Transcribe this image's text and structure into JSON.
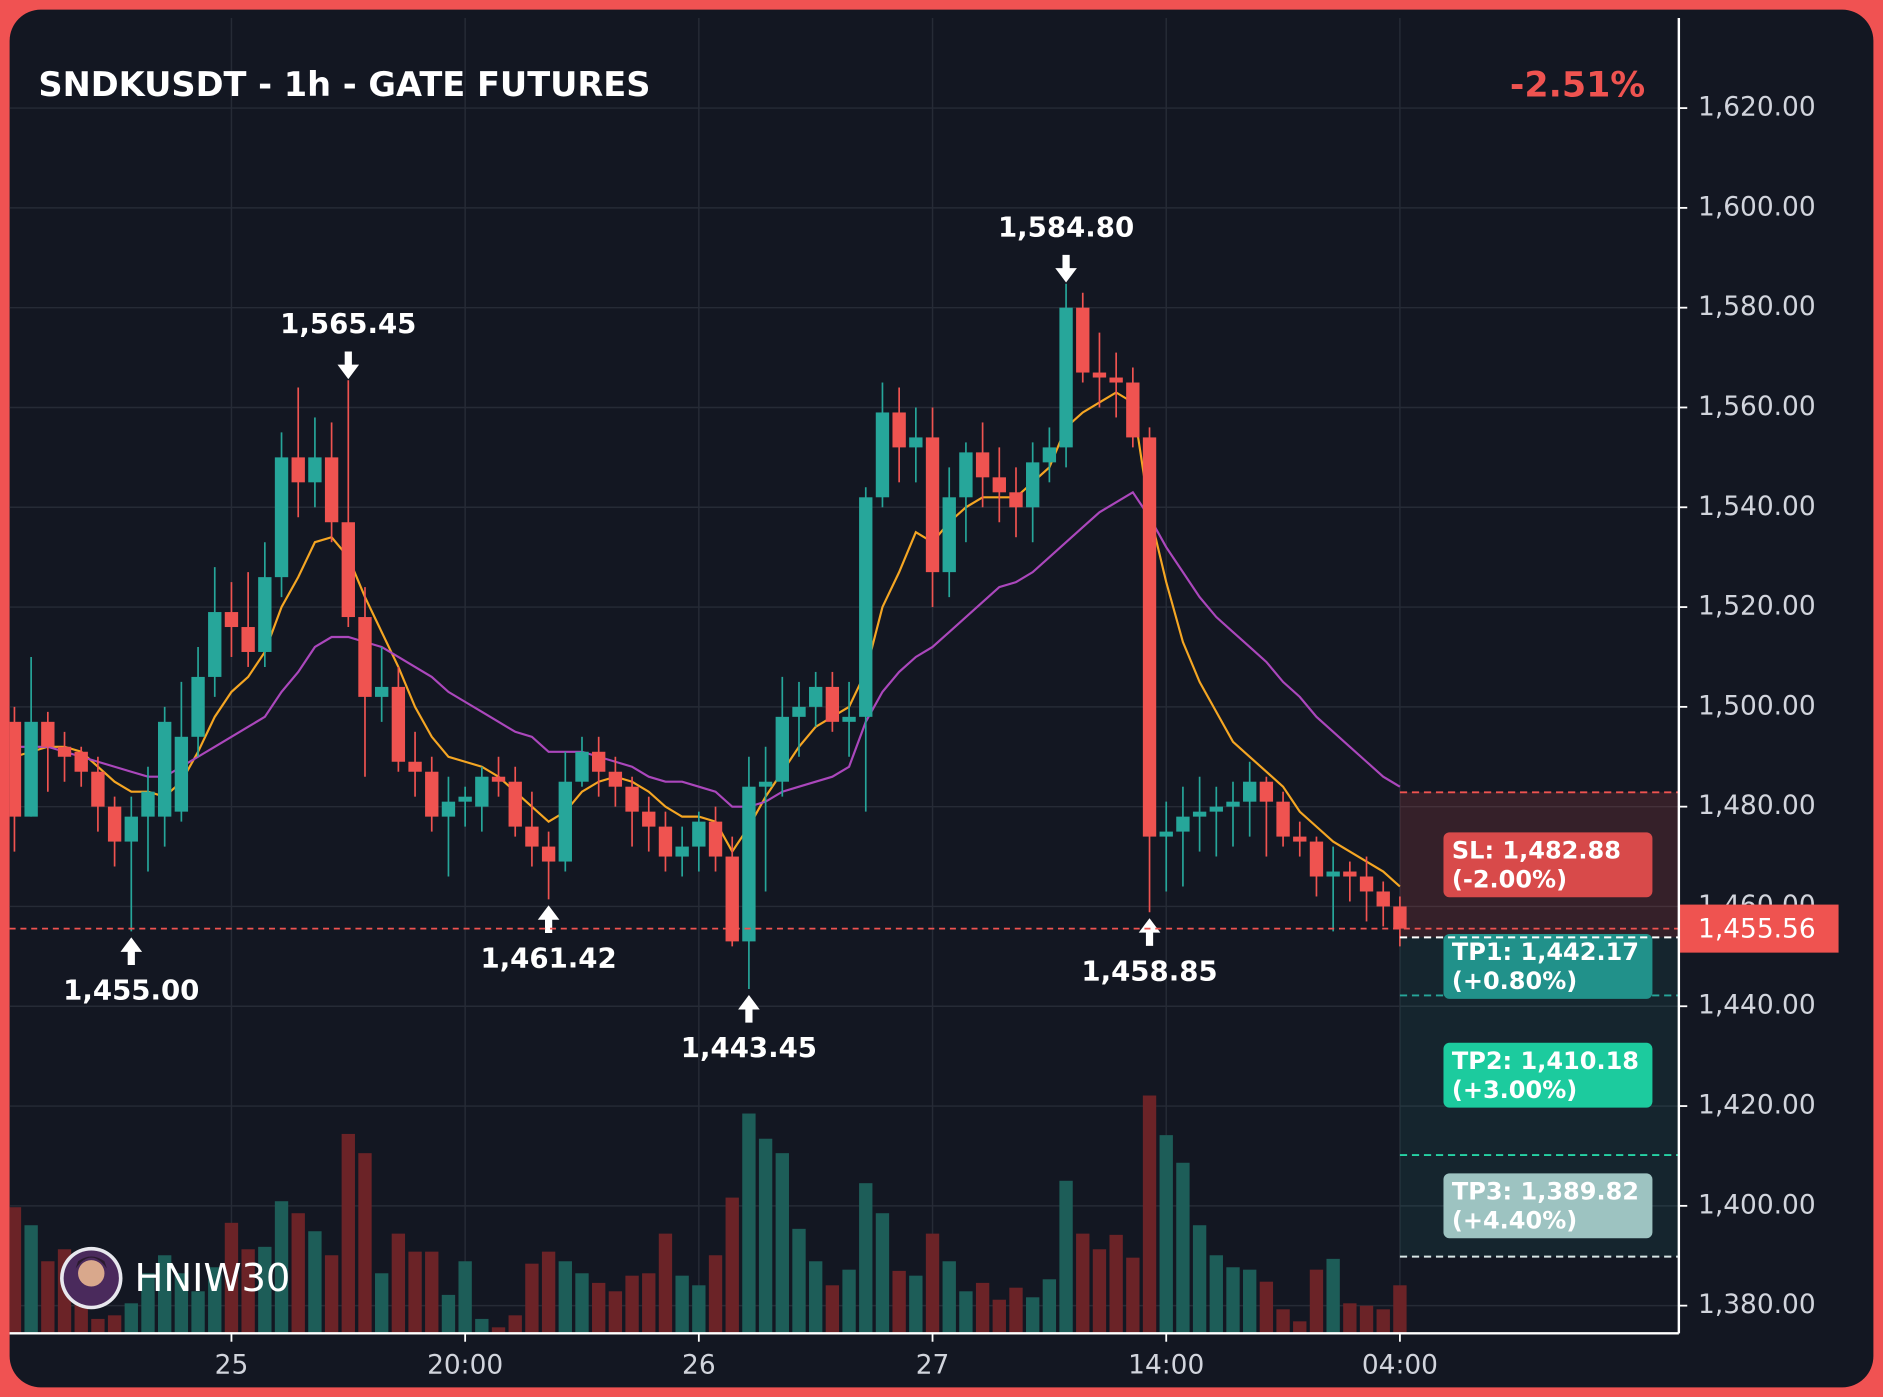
{
  "chart_data": {
    "type": "candlestick",
    "title": "SNDKUSDT - 1h - GATE FUTURES",
    "change": "-2.51%",
    "watermark": "HNIW30",
    "xlim": [
      -0.29,
      99.71
    ],
    "xticks": [
      {
        "value": 13,
        "label": "25"
      },
      {
        "value": 27,
        "label": "20:00"
      },
      {
        "value": 41,
        "label": "26"
      },
      {
        "value": 55,
        "label": "27"
      },
      {
        "value": 69,
        "label": "14:00"
      },
      {
        "value": 83,
        "label": "04:00"
      }
    ],
    "ylim": [
      1374.45,
      1638.05
    ],
    "yticks": [
      {
        "value": 1380,
        "label": "1,380.00"
      },
      {
        "value": 1400,
        "label": "1,400.00"
      },
      {
        "value": 1420,
        "label": "1,420.00"
      },
      {
        "value": 1440,
        "label": "1,440.00"
      },
      {
        "value": 1460,
        "label": "1,460.00"
      },
      {
        "value": 1480,
        "label": "1,480.00"
      },
      {
        "value": 1500,
        "label": "1,500.00"
      },
      {
        "value": 1520,
        "label": "1,520.00"
      },
      {
        "value": 1540,
        "label": "1,540.00"
      },
      {
        "value": 1560,
        "label": "1,560.00"
      },
      {
        "value": 1580,
        "label": "1,580.00"
      },
      {
        "value": 1600,
        "label": "1,600.00"
      },
      {
        "value": 1620,
        "label": "1,620.00"
      }
    ],
    "grid": true,
    "candles": {
      "up_color": "#26a69a",
      "down_color": "#ef5350",
      "open": [
        1497,
        1478,
        1497,
        1492,
        1491,
        1487,
        1480,
        1473,
        1478,
        1478,
        1479,
        1494,
        1506,
        1519,
        1516,
        1511,
        1526,
        1550,
        1545,
        1550,
        1537,
        1518,
        1502,
        1504,
        1489,
        1487,
        1478,
        1481,
        1480,
        1486,
        1485,
        1476,
        1472,
        1469,
        1485,
        1491,
        1487,
        1484,
        1479,
        1476,
        1470,
        1472,
        1477,
        1470,
        1453,
        1484,
        1485,
        1498,
        1500,
        1504,
        1497,
        1498,
        1542,
        1559,
        1552,
        1554,
        1527,
        1542,
        1551,
        1546,
        1543,
        1540,
        1549,
        1552,
        1580,
        1567,
        1566,
        1565,
        1554,
        1474,
        1475,
        1478,
        1479,
        1480,
        1481,
        1485,
        1481,
        1474,
        1473,
        1466,
        1467,
        1466,
        1463,
        1460
      ],
      "high": [
        1500,
        1510,
        1499,
        1495,
        1492,
        1490,
        1482,
        1482,
        1488,
        1500,
        1505,
        1512,
        1528,
        1525,
        1527,
        1533,
        1555,
        1564,
        1558,
        1557,
        1565.45,
        1524,
        1512,
        1508,
        1495,
        1490,
        1486,
        1484,
        1488,
        1490,
        1488,
        1483,
        1475,
        1491,
        1494,
        1494,
        1490,
        1486,
        1482,
        1479,
        1476,
        1479,
        1480,
        1474,
        1490,
        1492,
        1506,
        1505,
        1507,
        1507,
        1505,
        1544,
        1565,
        1564,
        1560,
        1560,
        1548,
        1553,
        1557,
        1552,
        1548,
        1553,
        1556,
        1584.8,
        1583,
        1575,
        1571,
        1568,
        1556,
        1481,
        1484,
        1486,
        1484,
        1485,
        1489,
        1486,
        1483,
        1477,
        1474,
        1472,
        1469,
        1470,
        1465,
        1462
      ],
      "low": [
        1471,
        1478,
        1483,
        1485,
        1484,
        1475,
        1468,
        1455,
        1467,
        1472,
        1477,
        1490,
        1502,
        1510,
        1508,
        1508,
        1522,
        1538,
        1540,
        1533,
        1516,
        1486,
        1497,
        1487,
        1482,
        1475,
        1466,
        1476,
        1475,
        1482,
        1474,
        1468,
        1461.42,
        1467,
        1484,
        1482,
        1480,
        1472,
        1471,
        1467,
        1466,
        1467,
        1467,
        1452,
        1443.45,
        1463,
        1482,
        1490,
        1496,
        1495,
        1490,
        1479,
        1540,
        1545,
        1545,
        1520,
        1522,
        1533,
        1540,
        1537,
        1534,
        1533,
        1545,
        1548,
        1565,
        1560,
        1558,
        1552,
        1458.85,
        1463,
        1464,
        1471,
        1470,
        1472,
        1474,
        1470,
        1472,
        1470,
        1462,
        1455,
        1461,
        1457,
        1456,
        1452
      ],
      "close": [
        1478,
        1497,
        1492,
        1490,
        1487,
        1480,
        1473,
        1478,
        1483,
        1497,
        1494,
        1506,
        1519,
        1516,
        1511,
        1526,
        1550,
        1545,
        1550,
        1537,
        1518,
        1502,
        1504,
        1489,
        1487,
        1478,
        1481,
        1482,
        1486,
        1485,
        1476,
        1472,
        1469,
        1485,
        1491,
        1487,
        1484,
        1479,
        1476,
        1470,
        1472,
        1477,
        1470,
        1453,
        1484,
        1485,
        1498,
        1500,
        1504,
        1497,
        1498,
        1542,
        1559,
        1552,
        1554,
        1527,
        1542,
        1551,
        1546,
        1543,
        1540,
        1549,
        1552,
        1580,
        1567,
        1566,
        1565,
        1554,
        1474,
        1475,
        1478,
        1479,
        1480,
        1481,
        1485,
        1481,
        1474,
        1473,
        1466,
        1467,
        1466,
        1463,
        1460,
        1455.56
      ]
    },
    "volume": {
      "up_color": "#1d5d58",
      "down_color": "#6b2327",
      "values": [
        105,
        90,
        60,
        70,
        40,
        12,
        15,
        25,
        50,
        65,
        50,
        35,
        55,
        92,
        70,
        72,
        110,
        100,
        85,
        65,
        166,
        150,
        50,
        83,
        68,
        68,
        32,
        60,
        12,
        5,
        15,
        58,
        68,
        60,
        50,
        42,
        35,
        48,
        50,
        83,
        48,
        40,
        65,
        113,
        183,
        162,
        150,
        87,
        60,
        40,
        53,
        125,
        100,
        52,
        48,
        83,
        60,
        35,
        42,
        28,
        38,
        30,
        45,
        127,
        83,
        70,
        82,
        63,
        198,
        165,
        142,
        90,
        65,
        55,
        53,
        43,
        20,
        10,
        53,
        62,
        25,
        23,
        20,
        40
      ]
    },
    "overlays": [
      {
        "color": "#f5a623",
        "values": [
          1490,
          1491,
          1492,
          1492,
          1491,
          1488,
          1485,
          1483,
          1483,
          1482,
          1485,
          1491,
          1498,
          1503,
          1506,
          1511,
          1520,
          1526,
          1533,
          1534,
          1530,
          1522,
          1515,
          1508,
          1500,
          1494,
          1490,
          1489,
          1488,
          1486,
          1483,
          1480,
          1477,
          1479,
          1483,
          1485,
          1486,
          1485,
          1483,
          1480,
          1478,
          1478,
          1477,
          1471,
          1476,
          1482,
          1487,
          1492,
          1496,
          1498,
          1500,
          1507,
          1520,
          1527,
          1535,
          1533,
          1537,
          1540,
          1542,
          1542,
          1542,
          1545,
          1548,
          1556,
          1559,
          1561,
          1563,
          1561,
          1539,
          1525,
          1513,
          1505,
          1499,
          1493,
          1490,
          1487,
          1484,
          1479,
          1476,
          1473,
          1471,
          1469,
          1467,
          1464
        ]
      },
      {
        "color": "#ab47bc",
        "values": [
          1492,
          1492,
          1492,
          1491,
          1490,
          1489,
          1488,
          1487,
          1486,
          1486,
          1488,
          1490,
          1492,
          1494,
          1496,
          1498,
          1503,
          1507,
          1512,
          1514,
          1514,
          1513,
          1512,
          1510,
          1508,
          1506,
          1503,
          1501,
          1499,
          1497,
          1495,
          1494,
          1491,
          1491,
          1491,
          1490,
          1489,
          1488,
          1486,
          1485,
          1485,
          1484,
          1483,
          1480,
          1480,
          1481,
          1483,
          1484,
          1485,
          1486,
          1488,
          1497,
          1503,
          1507,
          1510,
          1512,
          1515,
          1518,
          1521,
          1524,
          1525,
          1527,
          1530,
          1533,
          1536,
          1539,
          1541,
          1543,
          1538,
          1532,
          1527,
          1522,
          1518,
          1515,
          1512,
          1509,
          1505,
          1502,
          1498,
          1495,
          1492,
          1489,
          1486,
          1484
        ]
      }
    ],
    "annotations": [
      {
        "label": "1,455.00",
        "index": 7,
        "kind": "low"
      },
      {
        "label": "1,565.45",
        "index": 20,
        "kind": "high"
      },
      {
        "label": "1,461.42",
        "index": 32,
        "kind": "low"
      },
      {
        "label": "1,443.45",
        "index": 44,
        "kind": "low"
      },
      {
        "label": "1,584.80",
        "index": 63,
        "kind": "high"
      },
      {
        "label": "1,458.85",
        "index": 68,
        "kind": "low"
      }
    ],
    "last_price": {
      "value": 1455.56,
      "label": "1,455.56",
      "color": "#ef5350"
    },
    "entry": {
      "value": 1453.8,
      "color": "#ffffff"
    },
    "levels": [
      {
        "label": "SL: 1,482.88",
        "pct": "(-2.00%)",
        "value": 1482.88,
        "line_color": "#ef5350",
        "box_color": "#d84a4a",
        "zone_color": "#ef5350"
      },
      {
        "label": "TP1: 1,442.17",
        "pct": "(+0.80%)",
        "value": 1442.17,
        "line_color": "#26a69a",
        "box_color": "#21918a",
        "zone_color": "#26a69a"
      },
      {
        "label": "TP2: 1,410.18",
        "pct": "(+3.00%)",
        "value": 1410.18,
        "line_color": "#26d3a5",
        "box_color": "#1ccb9e",
        "zone_color": "#26a69a"
      },
      {
        "label": "TP3: 1,389.82",
        "pct": "(+4.40%)",
        "value": 1389.82,
        "line_color": "#d8e6e6",
        "box_color": "#9dc3c1",
        "zone_color": "#26a69a"
      }
    ]
  }
}
